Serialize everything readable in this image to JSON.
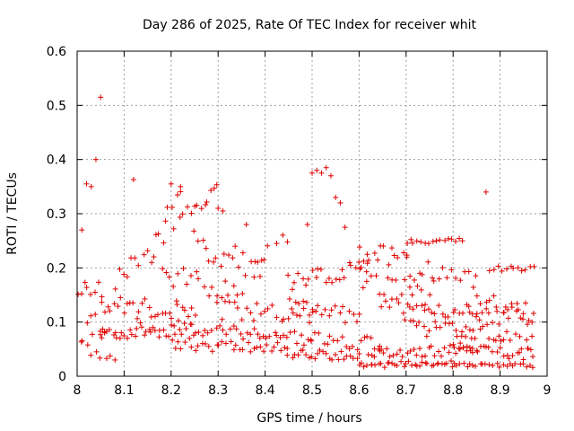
{
  "chart_data": {
    "type": "scatter",
    "title": "Day 286 of 2025, Rate Of TEC Index for receiver whit",
    "xlabel": "GPS time / hours",
    "ylabel": "ROTI / TECUs",
    "xlim": [
      8,
      9
    ],
    "ylim": [
      0,
      0.6
    ],
    "x_ticks": [
      "8",
      "8.1",
      "8.2",
      "8.3",
      "8.4",
      "8.5",
      "8.6",
      "8.7",
      "8.8",
      "8.9",
      "9"
    ],
    "y_ticks": [
      "0",
      "0.1",
      "0.2",
      "0.3",
      "0.4",
      "0.5",
      "0.6"
    ],
    "grid": true,
    "marker": "+",
    "color": "#e00000",
    "series": [
      {
        "values": [
          [
            8.01,
            0.27
          ],
          [
            8.02,
            0.355
          ],
          [
            8.03,
            0.35
          ],
          [
            8.04,
            0.4
          ],
          [
            8.05,
            0.515
          ],
          [
            8.12,
            0.363
          ],
          [
            8.2,
            0.355
          ],
          [
            8.22,
            0.35
          ],
          [
            8.3,
            0.31
          ],
          [
            8.31,
            0.305
          ],
          [
            8.36,
            0.28
          ],
          [
            8.49,
            0.28
          ],
          [
            8.5,
            0.375
          ],
          [
            8.51,
            0.38
          ],
          [
            8.52,
            0.375
          ],
          [
            8.53,
            0.385
          ],
          [
            8.54,
            0.37
          ],
          [
            8.55,
            0.33
          ],
          [
            8.56,
            0.32
          ],
          [
            8.57,
            0.275
          ],
          [
            8.87,
            0.34
          ]
        ]
      }
    ],
    "bands": [
      {
        "x0": 8.0,
        "x1": 8.06,
        "y0": 0.09,
        "y1": 0.1,
        "n": 10,
        "noise": 0.03
      },
      {
        "x0": 8.0,
        "x1": 8.05,
        "y0": 0.16,
        "y1": 0.16,
        "n": 8,
        "noise": 0.015
      },
      {
        "x0": 8.02,
        "x1": 8.08,
        "y0": 0.05,
        "y1": 0.03,
        "n": 7,
        "noise": 0.01
      },
      {
        "x0": 8.05,
        "x1": 8.25,
        "y0": 0.08,
        "y1": 0.09,
        "n": 40,
        "noise": 0.015
      },
      {
        "x0": 8.05,
        "x1": 8.25,
        "y0": 0.13,
        "y1": 0.12,
        "n": 30,
        "noise": 0.02
      },
      {
        "x0": 8.08,
        "x1": 8.14,
        "y0": 0.18,
        "y1": 0.22,
        "n": 8,
        "noise": 0.02
      },
      {
        "x0": 8.15,
        "x1": 8.22,
        "y0": 0.22,
        "y1": 0.32,
        "n": 12,
        "noise": 0.03
      },
      {
        "x0": 8.22,
        "x1": 8.3,
        "y0": 0.3,
        "y1": 0.34,
        "n": 12,
        "noise": 0.015
      },
      {
        "x0": 8.25,
        "x1": 8.4,
        "y0": 0.25,
        "y1": 0.2,
        "n": 20,
        "noise": 0.03
      },
      {
        "x0": 8.18,
        "x1": 8.35,
        "y0": 0.19,
        "y1": 0.15,
        "n": 20,
        "noise": 0.02
      },
      {
        "x0": 8.2,
        "x1": 8.45,
        "y0": 0.06,
        "y1": 0.05,
        "n": 35,
        "noise": 0.012
      },
      {
        "x0": 8.25,
        "x1": 8.5,
        "y0": 0.09,
        "y1": 0.07,
        "n": 35,
        "noise": 0.015
      },
      {
        "x0": 8.3,
        "x1": 8.5,
        "y0": 0.12,
        "y1": 0.11,
        "n": 25,
        "noise": 0.02
      },
      {
        "x0": 8.38,
        "x1": 8.45,
        "y0": 0.22,
        "y1": 0.25,
        "n": 6,
        "noise": 0.02
      },
      {
        "x0": 8.45,
        "x1": 8.62,
        "y0": 0.17,
        "y1": 0.2,
        "n": 25,
        "noise": 0.02
      },
      {
        "x0": 8.45,
        "x1": 8.6,
        "y0": 0.13,
        "y1": 0.11,
        "n": 22,
        "noise": 0.015
      },
      {
        "x0": 8.45,
        "x1": 8.6,
        "y0": 0.04,
        "y1": 0.04,
        "n": 25,
        "noise": 0.01
      },
      {
        "x0": 8.5,
        "x1": 8.65,
        "y0": 0.07,
        "y1": 0.06,
        "n": 20,
        "noise": 0.015
      },
      {
        "x0": 8.6,
        "x1": 8.7,
        "y0": 0.23,
        "y1": 0.22,
        "n": 14,
        "noise": 0.02
      },
      {
        "x0": 8.6,
        "x1": 8.75,
        "y0": 0.18,
        "y1": 0.15,
        "n": 18,
        "noise": 0.02
      },
      {
        "x0": 8.6,
        "x1": 8.8,
        "y0": 0.02,
        "y1": 0.025,
        "n": 35,
        "noise": 0.005
      },
      {
        "x0": 8.62,
        "x1": 8.85,
        "y0": 0.04,
        "y1": 0.05,
        "n": 35,
        "noise": 0.01
      },
      {
        "x0": 8.65,
        "x1": 8.85,
        "y0": 0.13,
        "y1": 0.12,
        "n": 28,
        "noise": 0.015
      },
      {
        "x0": 8.7,
        "x1": 8.82,
        "y0": 0.25,
        "y1": 0.25,
        "n": 16,
        "noise": 0.005
      },
      {
        "x0": 8.7,
        "x1": 8.85,
        "y0": 0.2,
        "y1": 0.17,
        "n": 18,
        "noise": 0.02
      },
      {
        "x0": 8.7,
        "x1": 8.9,
        "y0": 0.09,
        "y1": 0.08,
        "n": 28,
        "noise": 0.015
      },
      {
        "x0": 8.8,
        "x1": 8.97,
        "y0": 0.02,
        "y1": 0.02,
        "n": 25,
        "noise": 0.004
      },
      {
        "x0": 8.8,
        "x1": 8.97,
        "y0": 0.05,
        "y1": 0.04,
        "n": 25,
        "noise": 0.012
      },
      {
        "x0": 8.82,
        "x1": 8.97,
        "y0": 0.1,
        "y1": 0.12,
        "n": 22,
        "noise": 0.02
      },
      {
        "x0": 8.88,
        "x1": 8.97,
        "y0": 0.2,
        "y1": 0.2,
        "n": 12,
        "noise": 0.006
      },
      {
        "x0": 8.85,
        "x1": 8.97,
        "y0": 0.15,
        "y1": 0.1,
        "n": 14,
        "noise": 0.02
      },
      {
        "x0": 8.9,
        "x1": 8.97,
        "y0": 0.07,
        "y1": 0.06,
        "n": 10,
        "noise": 0.015
      }
    ]
  }
}
